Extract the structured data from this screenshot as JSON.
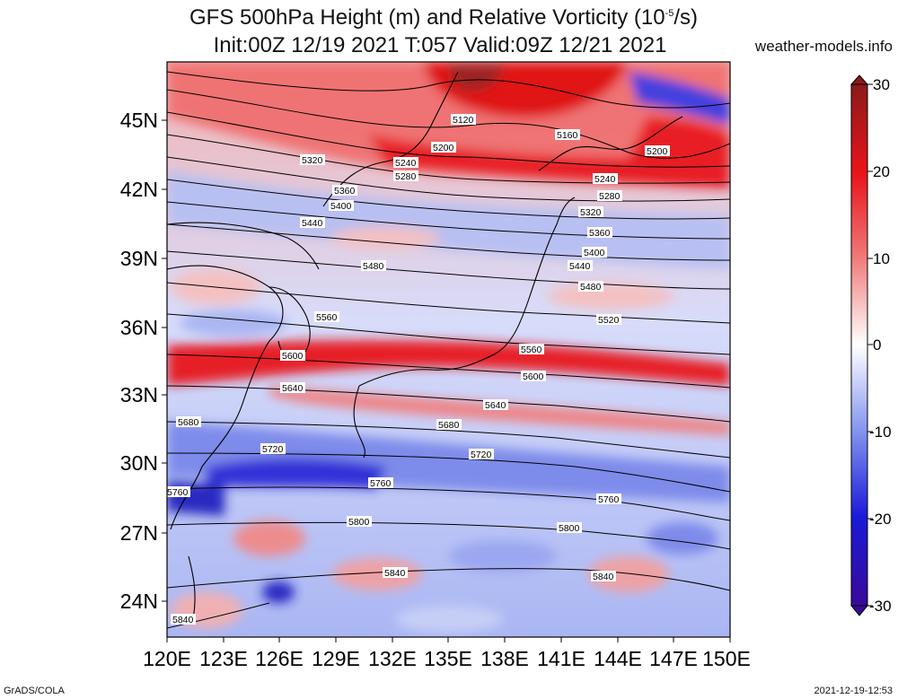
{
  "title": {
    "line1": "GFS 500hPa Height (m) and Relative Vorticity (10",
    "line1_exp": "-5",
    "line1_end": "/s)",
    "line2": "Init:00Z 12/19 2021 T:057 Valid:09Z 12/21 2021"
  },
  "site": "weather-models.info",
  "footer": {
    "left": "GrADS/COLA",
    "right": "2021-12-19-12:53"
  },
  "axes": {
    "lat_labels": [
      "45N",
      "42N",
      "39N",
      "36N",
      "33N",
      "30N",
      "27N",
      "24N"
    ],
    "lon_labels": [
      "120E",
      "123E",
      "126E",
      "129E",
      "132E",
      "135E",
      "138E",
      "141E",
      "144E",
      "147E",
      "150E"
    ]
  },
  "colorbar": {
    "labels": [
      "30",
      "20",
      "10",
      "0",
      "-10",
      "-20",
      "-30"
    ],
    "colors": {
      "max": "#8b1a1a",
      "high": "#e8141a",
      "mid_pos": "#f2a0a0",
      "zero": "#ffffff",
      "mid_neg": "#9aa6f0",
      "low": "#1a1ad8",
      "min": "#3a0a9a"
    }
  },
  "contour_labels": [
    "5120",
    "5160",
    "5200",
    "5200",
    "5240",
    "5240",
    "5280",
    "5280",
    "5320",
    "5320",
    "5360",
    "5360",
    "5400",
    "5400",
    "5440",
    "5440",
    "5480",
    "5480",
    "5520",
    "5560",
    "5560",
    "5600",
    "5600",
    "5640",
    "5640",
    "5680",
    "5680",
    "5720",
    "5720",
    "5760",
    "5760",
    "5760",
    "5800",
    "5800",
    "5840",
    "5840",
    "5840"
  ]
}
